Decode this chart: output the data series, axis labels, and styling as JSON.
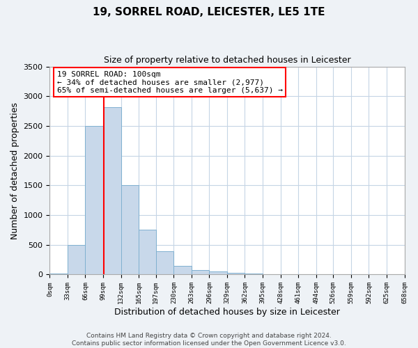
{
  "title": "19, SORREL ROAD, LEICESTER, LE5 1TE",
  "subtitle": "Size of property relative to detached houses in Leicester",
  "xlabel": "Distribution of detached houses by size in Leicester",
  "ylabel": "Number of detached properties",
  "bar_edges": [
    0,
    33,
    66,
    99,
    132,
    165,
    197,
    230,
    263,
    296,
    329,
    362,
    395,
    428,
    461,
    494,
    526,
    559,
    592,
    625,
    658
  ],
  "bar_heights": [
    20,
    500,
    2500,
    2820,
    1500,
    750,
    390,
    150,
    80,
    50,
    30,
    15,
    5,
    0,
    0,
    0,
    0,
    0,
    0,
    0
  ],
  "bar_color": "#c8d8ea",
  "bar_edgecolor": "#7fb0d0",
  "property_line_x": 100,
  "property_line_color": "red",
  "annotation_text": "19 SORREL ROAD: 100sqm\n← 34% of detached houses are smaller (2,977)\n65% of semi-detached houses are larger (5,637) →",
  "annotation_box_color": "white",
  "annotation_box_edgecolor": "red",
  "ylim": [
    0,
    3500
  ],
  "xlim": [
    0,
    658
  ],
  "tick_labels": [
    "0sqm",
    "33sqm",
    "66sqm",
    "99sqm",
    "132sqm",
    "165sqm",
    "197sqm",
    "230sqm",
    "263sqm",
    "296sqm",
    "329sqm",
    "362sqm",
    "395sqm",
    "428sqm",
    "461sqm",
    "494sqm",
    "526sqm",
    "559sqm",
    "592sqm",
    "625sqm",
    "658sqm"
  ],
  "tick_positions": [
    0,
    33,
    66,
    99,
    132,
    165,
    197,
    230,
    263,
    296,
    329,
    362,
    395,
    428,
    461,
    494,
    526,
    559,
    592,
    625,
    658
  ],
  "ytick_positions": [
    0,
    500,
    1000,
    1500,
    2000,
    2500,
    3000,
    3500
  ],
  "ytick_labels": [
    "0",
    "500",
    "1000",
    "1500",
    "2000",
    "2500",
    "3000",
    "3500"
  ],
  "footer_text": "Contains HM Land Registry data © Crown copyright and database right 2024.\nContains public sector information licensed under the Open Government Licence v3.0.",
  "background_color": "#eef2f6",
  "plot_background_color": "white",
  "grid_color": "#c5d5e5",
  "title_fontsize": 11,
  "subtitle_fontsize": 9,
  "xlabel_fontsize": 9,
  "ylabel_fontsize": 9,
  "xtick_fontsize": 6.5,
  "ytick_fontsize": 8,
  "footer_fontsize": 6.5,
  "annotation_fontsize": 8
}
